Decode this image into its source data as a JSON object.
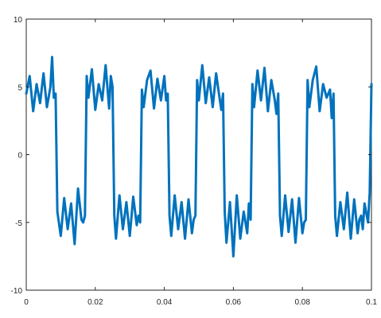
{
  "chart_data": {
    "type": "line",
    "title": "",
    "xlabel": "",
    "ylabel": "",
    "xlim": [
      0,
      0.1
    ],
    "ylim": [
      -10,
      10
    ],
    "grid": false,
    "x_ticks": [
      0,
      0.02,
      0.04,
      0.06,
      0.08,
      0.1
    ],
    "x_tick_labels": [
      "0",
      "0.02",
      "0.04",
      "0.06",
      "0.08",
      "0.1"
    ],
    "y_ticks": [
      -10,
      -5,
      0,
      5,
      10
    ],
    "y_tick_labels": [
      "-10",
      "-5",
      "0",
      "5",
      "10"
    ],
    "series": [
      {
        "color": "#0072BD",
        "line_width": 3,
        "x": [
          0.0,
          0.001,
          0.002,
          0.003,
          0.004,
          0.005,
          0.006,
          0.007,
          0.0075,
          0.008,
          0.0085,
          0.009,
          0.01,
          0.011,
          0.012,
          0.013,
          0.014,
          0.015,
          0.016,
          0.0165,
          0.017,
          0.0175,
          0.018,
          0.019,
          0.02,
          0.021,
          0.022,
          0.023,
          0.024,
          0.0245,
          0.025,
          0.0255,
          0.026,
          0.027,
          0.028,
          0.029,
          0.03,
          0.031,
          0.032,
          0.0325,
          0.033,
          0.0335,
          0.034,
          0.035,
          0.036,
          0.037,
          0.038,
          0.039,
          0.04,
          0.0405,
          0.041,
          0.0415,
          0.042,
          0.043,
          0.044,
          0.045,
          0.046,
          0.047,
          0.048,
          0.0485,
          0.049,
          0.0495,
          0.05,
          0.051,
          0.052,
          0.053,
          0.054,
          0.055,
          0.056,
          0.0565,
          0.057,
          0.0575,
          0.058,
          0.059,
          0.06,
          0.061,
          0.062,
          0.063,
          0.064,
          0.0645,
          0.065,
          0.0655,
          0.066,
          0.067,
          0.068,
          0.069,
          0.07,
          0.071,
          0.072,
          0.0725,
          0.073,
          0.0735,
          0.074,
          0.075,
          0.076,
          0.077,
          0.078,
          0.079,
          0.08,
          0.0805,
          0.081,
          0.0815,
          0.082,
          0.083,
          0.084,
          0.085,
          0.086,
          0.087,
          0.088,
          0.0885,
          0.089,
          0.0895,
          0.09,
          0.091,
          0.092,
          0.093,
          0.094,
          0.095,
          0.096,
          0.0965,
          0.097,
          0.0975,
          0.098,
          0.099,
          0.0995,
          0.1
        ],
        "y": [
          4.5,
          5.8,
          3.2,
          5.2,
          3.8,
          6.0,
          3.5,
          5.0,
          7.2,
          4.2,
          4.5,
          -4.2,
          -6.0,
          -3.2,
          -5.5,
          -3.6,
          -6.6,
          -2.5,
          -4.8,
          -5.0,
          -4.5,
          5.8,
          4.2,
          6.3,
          3.3,
          5.2,
          4.0,
          6.6,
          3.4,
          5.8,
          5.0,
          -4.5,
          -6.2,
          -3.0,
          -5.5,
          -3.5,
          -6.0,
          -3.1,
          -5.2,
          -4.5,
          -5.0,
          4.8,
          3.5,
          5.5,
          6.2,
          3.4,
          5.6,
          4.0,
          5.8,
          4.0,
          4.5,
          -4.5,
          -6.0,
          -3.0,
          -5.5,
          -3.5,
          -6.2,
          -3.3,
          -5.8,
          -4.8,
          -4.5,
          5.5,
          4.0,
          6.6,
          3.8,
          5.7,
          3.5,
          6.0,
          4.2,
          3.3,
          4.5,
          -4.2,
          -6.5,
          -3.5,
          -7.5,
          -3.0,
          -6.2,
          -4.2,
          -5.8,
          -3.6,
          -4.8,
          5.2,
          3.5,
          6.2,
          4.0,
          6.4,
          3.2,
          5.5,
          4.0,
          3.0,
          4.5,
          -4.5,
          -6.0,
          -3.0,
          -5.7,
          -3.3,
          -6.5,
          -3.2,
          -5.8,
          -5.0,
          -4.8,
          5.5,
          3.5,
          5.5,
          6.5,
          3.2,
          5.2,
          4.2,
          4.8,
          2.7,
          4.5,
          -4.5,
          -6.0,
          -3.5,
          -5.5,
          -2.8,
          -6.2,
          -3.3,
          -5.8,
          -4.8,
          -4.5,
          -5.5,
          -3.6,
          -5.0,
          -2.8,
          5.2
        ]
      }
    ]
  }
}
